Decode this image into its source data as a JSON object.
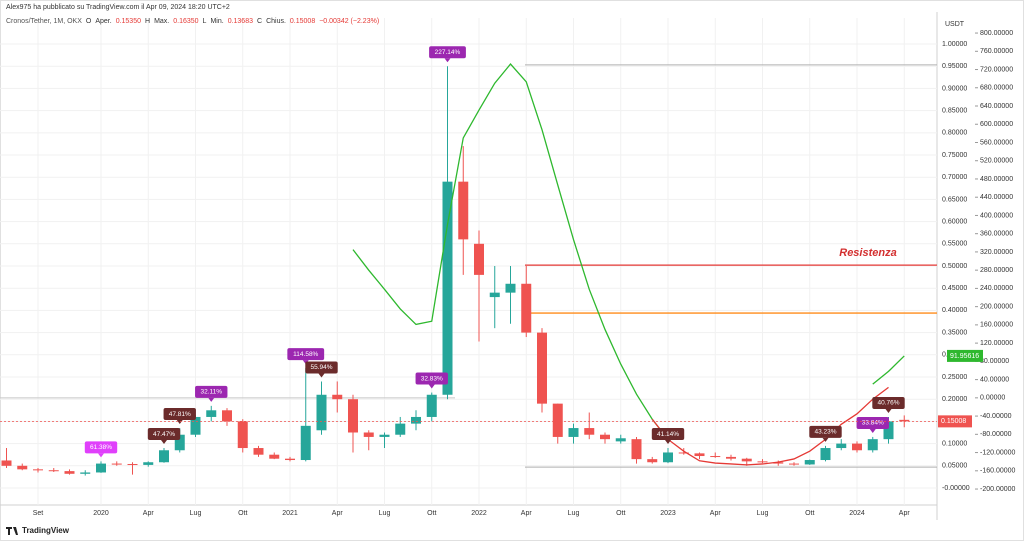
{
  "chart_data": {
    "type": "candlestick",
    "publisher": "Alex975 ha pubblicato su TradingView.com il Apr 09, 2024 18:20 UTC+2",
    "symbol": "Cronos/Tether, 1M, OKX",
    "ohlc_legend": [
      {
        "key": "O",
        "label": "Aper.",
        "value": "0.15350"
      },
      {
        "key": "H",
        "label": "Max.",
        "value": "0.16350"
      },
      {
        "key": "L",
        "label": "Min.",
        "value": "0.13683"
      },
      {
        "key": "C",
        "label": "Chius.",
        "value": "0.15008"
      }
    ],
    "change": "−0.00342 (−2.23%)",
    "currency": "USDT",
    "annotation": "Resistenza",
    "brand": "TradingView",
    "up_color": "#26a69a",
    "down_color": "#ef5350",
    "categories": [
      null,
      null,
      "Set",
      null,
      null,
      null,
      "2020",
      null,
      null,
      "Apr",
      null,
      null,
      "Lug",
      null,
      null,
      "Ott",
      null,
      null,
      "2021",
      null,
      null,
      "Apr",
      null,
      null,
      "Lug",
      null,
      null,
      "Ott",
      null,
      null,
      "2022",
      null,
      null,
      "Apr",
      null,
      null,
      "Lug",
      null,
      null,
      "Ott",
      null,
      null,
      "2023",
      null,
      null,
      "Apr",
      null,
      null,
      "Lug",
      null,
      null,
      "Ott",
      null,
      null,
      "2024",
      null,
      null,
      "Apr"
    ],
    "open": [
      0.062,
      0.05,
      0.042,
      0.04,
      0.038,
      0.032,
      0.035,
      0.055,
      0.054,
      0.052,
      0.058,
      0.085,
      0.12,
      0.16,
      0.175,
      0.15,
      0.09,
      0.075,
      0.066,
      0.063,
      0.13,
      0.21,
      0.2,
      0.125,
      0.115,
      0.12,
      0.145,
      0.16,
      0.21,
      0.69,
      0.55,
      0.43,
      0.44,
      0.46,
      0.35,
      0.19,
      0.115,
      0.135,
      0.12,
      0.105,
      0.11,
      0.065,
      0.058,
      0.08,
      0.078,
      0.072,
      0.07,
      0.066,
      0.06,
      0.058,
      0.055,
      0.053,
      0.063,
      0.09,
      0.1,
      0.085,
      0.11,
      0.1535
    ],
    "high": [
      0.09,
      0.055,
      0.045,
      0.045,
      0.042,
      0.04,
      0.06,
      0.06,
      0.058,
      0.06,
      0.09,
      0.135,
      0.165,
      0.185,
      0.18,
      0.155,
      0.095,
      0.08,
      0.07,
      0.27,
      0.24,
      0.24,
      0.21,
      0.13,
      0.125,
      0.16,
      0.175,
      0.215,
      0.95,
      0.77,
      0.58,
      0.5,
      0.5,
      0.5,
      0.36,
      0.19,
      0.145,
      0.17,
      0.125,
      0.12,
      0.115,
      0.07,
      0.09,
      0.09,
      0.08,
      0.08,
      0.075,
      0.068,
      0.065,
      0.062,
      0.058,
      0.064,
      0.095,
      0.11,
      0.105,
      0.115,
      0.16,
      0.1635
    ],
    "low": [
      0.045,
      0.04,
      0.035,
      0.036,
      0.03,
      0.028,
      0.034,
      0.05,
      0.03,
      0.048,
      0.057,
      0.08,
      0.115,
      0.15,
      0.14,
      0.08,
      0.07,
      0.065,
      0.06,
      0.06,
      0.12,
      0.17,
      0.08,
      0.085,
      0.09,
      0.115,
      0.13,
      0.15,
      0.2,
      0.48,
      0.33,
      0.36,
      0.37,
      0.34,
      0.17,
      0.1,
      0.1,
      0.11,
      0.1,
      0.1,
      0.055,
      0.055,
      0.056,
      0.075,
      0.065,
      0.068,
      0.062,
      0.05,
      0.056,
      0.05,
      0.05,
      0.052,
      0.06,
      0.085,
      0.08,
      0.08,
      0.1,
      0.13683
    ],
    "close": [
      0.05,
      0.042,
      0.04,
      0.038,
      0.032,
      0.035,
      0.055,
      0.054,
      0.052,
      0.058,
      0.085,
      0.12,
      0.16,
      0.175,
      0.15,
      0.09,
      0.075,
      0.066,
      0.063,
      0.14,
      0.21,
      0.2,
      0.125,
      0.115,
      0.12,
      0.145,
      0.16,
      0.21,
      0.69,
      0.56,
      0.48,
      0.44,
      0.46,
      0.35,
      0.19,
      0.115,
      0.135,
      0.12,
      0.11,
      0.112,
      0.065,
      0.058,
      0.08,
      0.078,
      0.072,
      0.07,
      0.066,
      0.06,
      0.058,
      0.055,
      0.053,
      0.063,
      0.09,
      0.1,
      0.085,
      0.11,
      0.15,
      0.15008
    ],
    "change_labels": [
      null,
      null,
      null,
      null,
      null,
      null,
      {
        "text": "61.38%",
        "color": "#e040fb"
      },
      null,
      null,
      null,
      {
        "text": "47.47%",
        "color": "#6b2b2b"
      },
      {
        "text": "47.81%",
        "color": "#6b2b2b"
      },
      null,
      {
        "text": "32.11%",
        "color": "#9c27b0"
      },
      null,
      null,
      null,
      null,
      null,
      {
        "text": "114.58%",
        "color": "#9c27b0"
      },
      {
        "text": "55.94%",
        "color": "#6b2b2b"
      },
      null,
      null,
      null,
      null,
      null,
      null,
      {
        "text": "32.83%",
        "color": "#9c27b0"
      },
      {
        "text": "227.14%",
        "color": "#9c27b0"
      },
      null,
      null,
      null,
      null,
      null,
      null,
      null,
      null,
      null,
      null,
      null,
      null,
      null,
      {
        "text": "41.14%",
        "color": "#6b2b2b"
      },
      null,
      null,
      null,
      null,
      null,
      null,
      null,
      null,
      null,
      {
        "text": "43.23%",
        "color": "#6b2b2b"
      },
      null,
      null,
      {
        "text": "33.84%",
        "color": "#9c27b0"
      },
      {
        "text": "40.76%",
        "color": "#6b2b2b"
      },
      null
    ],
    "series": [
      {
        "color": "#2eb82e",
        "axis": "y2",
        "values": [
          null,
          null,
          null,
          null,
          null,
          null,
          null,
          null,
          null,
          null,
          null,
          null,
          null,
          null,
          null,
          null,
          null,
          null,
          null,
          null,
          null,
          null,
          325,
          280,
          238,
          195,
          161,
          168,
          380,
          570,
          631,
          690,
          732,
          693,
          588,
          467,
          347,
          238,
          150,
          74,
          8,
          -47,
          -91,
          null,
          null,
          null,
          null,
          null,
          null,
          null,
          null,
          null,
          null,
          null,
          null,
          30,
          58,
          91.95616
        ]
      },
      {
        "color": "#e53935",
        "axis": "y2",
        "values": [
          null,
          null,
          null,
          null,
          null,
          null,
          null,
          null,
          null,
          null,
          null,
          null,
          null,
          null,
          null,
          null,
          null,
          null,
          null,
          null,
          null,
          null,
          null,
          null,
          null,
          null,
          null,
          null,
          null,
          null,
          null,
          null,
          null,
          null,
          null,
          null,
          null,
          null,
          null,
          null,
          null,
          -47,
          -91,
          -117,
          -138,
          -143,
          -145,
          -147,
          -145,
          -141,
          -134,
          -117,
          -91,
          -58,
          -35,
          -3,
          23,
          null
        ]
      }
    ],
    "hlines": [
      {
        "value": 0.953,
        "color": "#b0b0b0"
      },
      {
        "value": 0.502,
        "color": "#e53935"
      },
      {
        "value": 0.394,
        "color": "#ff8c1a"
      },
      {
        "value": 0.203,
        "color": "#c8c8c8"
      },
      {
        "value": 0.047,
        "color": "#b0b0b0"
      }
    ],
    "ylim": [
      -0.0383,
      1.0586
    ],
    "yticks": [
      {
        "value": 1,
        "label": "1.00000"
      },
      {
        "value": 0.95,
        "label": "0.95000"
      },
      {
        "value": 0.9,
        "label": "0.90000"
      },
      {
        "value": 0.85,
        "label": "0.85000"
      },
      {
        "value": 0.8,
        "label": "0.80000"
      },
      {
        "value": 0.75,
        "label": "0.75000"
      },
      {
        "value": 0.7,
        "label": "0.70000"
      },
      {
        "value": 0.65,
        "label": "0.65000"
      },
      {
        "value": 0.6,
        "label": "0.60000"
      },
      {
        "value": 0.55,
        "label": "0.55000"
      },
      {
        "value": 0.5,
        "label": "0.50000"
      },
      {
        "value": 0.45,
        "label": "0.45000"
      },
      {
        "value": 0.4,
        "label": "0.40000"
      },
      {
        "value": 0.35,
        "label": "0.35000"
      },
      {
        "value": 0.3,
        "label": "0.30000"
      },
      {
        "value": 0.25,
        "label": "0.25000"
      },
      {
        "value": 0.2,
        "label": "0.20000"
      },
      {
        "value": 0.15,
        "label": "0.15000"
      },
      {
        "value": 0.1,
        "label": "0.10000"
      },
      {
        "value": 0.05,
        "label": "0.05000"
      },
      {
        "value": 0,
        "label": "-0.00000"
      }
    ],
    "y2lim": [
      -235,
      833
    ],
    "y2ticks": [
      {
        "value": 800,
        "label": "800.00000"
      },
      {
        "value": 760,
        "label": "760.00000"
      },
      {
        "value": 720,
        "label": "720.00000"
      },
      {
        "value": 680,
        "label": "680.00000"
      },
      {
        "value": 640,
        "label": "640.00000"
      },
      {
        "value": 600,
        "label": "600.00000"
      },
      {
        "value": 560,
        "label": "560.00000"
      },
      {
        "value": 520,
        "label": "520.00000"
      },
      {
        "value": 480,
        "label": "480.00000"
      },
      {
        "value": 440,
        "label": "440.00000"
      },
      {
        "value": 400,
        "label": "400.00000"
      },
      {
        "value": 360,
        "label": "360.00000"
      },
      {
        "value": 320,
        "label": "320.00000"
      },
      {
        "value": 280,
        "label": "280.00000"
      },
      {
        "value": 240,
        "label": "240.00000"
      },
      {
        "value": 200,
        "label": "200.00000"
      },
      {
        "value": 160,
        "label": "160.00000"
      },
      {
        "value": 120,
        "label": "120.00000"
      },
      {
        "value": 80,
        "label": "80.00000"
      },
      {
        "value": 40,
        "label": "40.00000"
      },
      {
        "value": 0,
        "label": "0.00000"
      },
      {
        "value": -40,
        "label": "-40.00000"
      },
      {
        "value": -80,
        "label": "-80.00000"
      },
      {
        "value": -120,
        "label": "-120.00000"
      },
      {
        "value": -160,
        "label": "-160.00000"
      },
      {
        "value": -200,
        "label": "-200.00000"
      }
    ],
    "grid": true
  }
}
